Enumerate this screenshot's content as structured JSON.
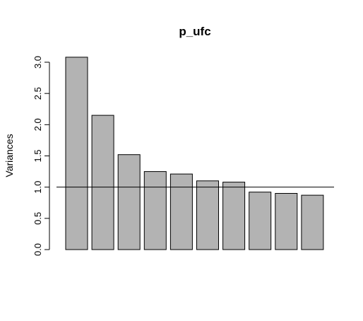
{
  "chart_data": {
    "type": "bar",
    "title": "p_ufc",
    "xlabel": "",
    "ylabel": "Variances",
    "categories": [
      "",
      "",
      "",
      "",
      "",
      "",
      "",
      "",
      "",
      ""
    ],
    "values": [
      3.08,
      2.15,
      1.52,
      1.25,
      1.21,
      1.1,
      1.08,
      0.92,
      0.9,
      0.87
    ],
    "ylim": [
      0,
      3.0
    ],
    "yticks": [
      0.0,
      0.5,
      1.0,
      1.5,
      2.0,
      2.5,
      3.0
    ],
    "ytick_labels": [
      "0.0",
      "0.5",
      "1.0",
      "1.5",
      "2.0",
      "2.5",
      "3.0"
    ],
    "reference_line": 1.0,
    "bar_color": "#b3b3b3",
    "grid": false,
    "legend": "none"
  }
}
